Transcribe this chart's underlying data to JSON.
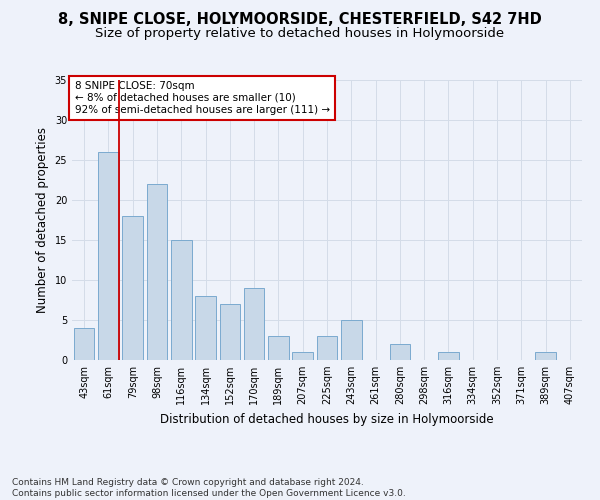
{
  "title": "8, SNIPE CLOSE, HOLYMOORSIDE, CHESTERFIELD, S42 7HD",
  "subtitle": "Size of property relative to detached houses in Holymoorside",
  "xlabel": "Distribution of detached houses by size in Holymoorside",
  "ylabel": "Number of detached properties",
  "categories": [
    "43sqm",
    "61sqm",
    "79sqm",
    "98sqm",
    "116sqm",
    "134sqm",
    "152sqm",
    "170sqm",
    "189sqm",
    "207sqm",
    "225sqm",
    "243sqm",
    "261sqm",
    "280sqm",
    "298sqm",
    "316sqm",
    "334sqm",
    "352sqm",
    "371sqm",
    "389sqm",
    "407sqm"
  ],
  "values": [
    4,
    26,
    18,
    22,
    15,
    8,
    7,
    9,
    3,
    1,
    3,
    5,
    0,
    2,
    0,
    1,
    0,
    0,
    0,
    1,
    0
  ],
  "bar_color": "#c8d8e8",
  "bar_edge_color": "#7baacf",
  "grid_color": "#d4dce8",
  "background_color": "#eef2fa",
  "annotation_box_text": "8 SNIPE CLOSE: 70sqm\n← 8% of detached houses are smaller (10)\n92% of semi-detached houses are larger (111) →",
  "annotation_box_color": "#ffffff",
  "annotation_box_edge_color": "#cc0000",
  "vline_color": "#cc0000",
  "ylim": [
    0,
    35
  ],
  "yticks": [
    0,
    5,
    10,
    15,
    20,
    25,
    30,
    35
  ],
  "footer": "Contains HM Land Registry data © Crown copyright and database right 2024.\nContains public sector information licensed under the Open Government Licence v3.0.",
  "title_fontsize": 10.5,
  "subtitle_fontsize": 9.5,
  "xlabel_fontsize": 8.5,
  "ylabel_fontsize": 8.5,
  "tick_fontsize": 7,
  "annot_fontsize": 7.5,
  "footer_fontsize": 6.5
}
